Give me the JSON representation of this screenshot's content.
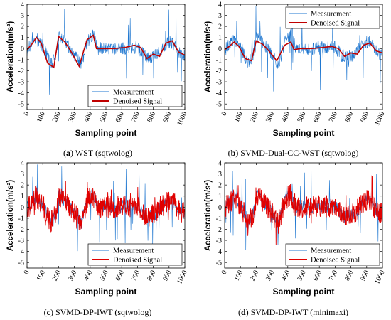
{
  "captions": [
    {
      "letter": "a",
      "text": " WST (sqtwolog)"
    },
    {
      "letter": "b",
      "text": " SVMD-Dual-CC-WST (sqtwolog)"
    },
    {
      "letter": "c",
      "text": " SVMD-DP-IWT (sqtwolog)"
    },
    {
      "letter": "d",
      "text": " SVMD-DP-IWT (minimaxi)"
    }
  ],
  "chart_data": [
    {
      "type": "line",
      "title": "",
      "xlabel": "Sampling point",
      "ylabel": "Acceleration(m/s²)",
      "xlim": [
        0,
        1000
      ],
      "ylim": [
        -5.5,
        4
      ],
      "xticks": [
        "0",
        "100",
        "200",
        "300",
        "400",
        "500",
        "600",
        "700",
        "800",
        "900",
        "1000"
      ],
      "yticks": [
        "4",
        "3",
        "2",
        "1",
        "0",
        "-1",
        "-2",
        "-3",
        "-4",
        "-5"
      ],
      "legend_position": "bottom-right",
      "series": [
        {
          "name": "Measurement",
          "color": "#1f77d0",
          "style": "thin"
        },
        {
          "name": "Denoised Signal",
          "color": "#c00000",
          "style": "smooth",
          "x": [
            0,
            30,
            60,
            90,
            130,
            170,
            200,
            240,
            280,
            330,
            380,
            420,
            440,
            480,
            550,
            620,
            680,
            720,
            760,
            800,
            840,
            880,
            920,
            960,
            1000
          ],
          "y": [
            -0.1,
            0.4,
            1.0,
            0.5,
            -1.3,
            -1.7,
            1.1,
            0.6,
            -0.3,
            -1.6,
            0.8,
            1.2,
            0.0,
            0.0,
            0.0,
            0.1,
            0.3,
            0.1,
            -0.9,
            -0.5,
            -0.7,
            0.5,
            0.7,
            -0.3,
            -0.6
          ]
        }
      ]
    },
    {
      "type": "line",
      "title": "",
      "xlabel": "Sampling point",
      "ylabel": "Acceleration(m/s²)",
      "xlim": [
        0,
        1000
      ],
      "ylim": [
        -5.5,
        4
      ],
      "xticks": [
        "0",
        "100",
        "200",
        "300",
        "400",
        "500",
        "600",
        "700",
        "800",
        "900",
        "1000"
      ],
      "yticks": [
        "4",
        "3",
        "2",
        "1",
        "0",
        "-1",
        "-2",
        "-3",
        "-4",
        "-5"
      ],
      "legend_position": "top-right",
      "series": [
        {
          "name": "Measurement",
          "color": "#1f77d0",
          "style": "thin"
        },
        {
          "name": "Denoised Signal",
          "color": "#c00000",
          "style": "smooth",
          "x": [
            0,
            30,
            60,
            90,
            130,
            170,
            200,
            240,
            280,
            330,
            380,
            420,
            440,
            480,
            550,
            620,
            680,
            720,
            760,
            800,
            840,
            880,
            920,
            960,
            1000
          ],
          "y": [
            -0.1,
            0.2,
            0.6,
            0.2,
            -0.9,
            -1.1,
            0.7,
            0.4,
            -0.2,
            -1.1,
            0.3,
            0.6,
            -0.1,
            0.0,
            0.0,
            0.1,
            0.2,
            0.0,
            -0.7,
            -0.4,
            -0.5,
            0.3,
            0.5,
            -0.2,
            -0.4
          ]
        }
      ]
    },
    {
      "type": "line",
      "title": "",
      "xlabel": "Sampling point",
      "ylabel": "Acceleration(m/s²)",
      "xlim": [
        0,
        1000
      ],
      "ylim": [
        -5.5,
        4
      ],
      "xticks": [
        "0",
        "100",
        "200",
        "300",
        "400",
        "500",
        "600",
        "700",
        "800",
        "900",
        "1000"
      ],
      "yticks": [
        "4",
        "3",
        "2",
        "1",
        "0",
        "-1",
        "-2",
        "-3",
        "-4",
        "-5"
      ],
      "legend_position": "bottom-right",
      "series": [
        {
          "name": "Measurement",
          "color": "#1f77d0",
          "style": "thin"
        },
        {
          "name": "Denoised Signal",
          "color": "#e00000",
          "style": "dense"
        }
      ]
    },
    {
      "type": "line",
      "title": "",
      "xlabel": "Sampling point",
      "ylabel": "Acceleration(m/s²)",
      "xlim": [
        0,
        1000
      ],
      "ylim": [
        -5.5,
        4
      ],
      "xticks": [
        "0",
        "100",
        "200",
        "300",
        "400",
        "500",
        "600",
        "700",
        "800",
        "900",
        "1000"
      ],
      "yticks": [
        "4",
        "3",
        "2",
        "1",
        "0",
        "-1",
        "-2",
        "-3",
        "-4",
        "-5"
      ],
      "legend_position": "bottom-right",
      "series": [
        {
          "name": "Measurement",
          "color": "#1f77d0",
          "style": "thin"
        },
        {
          "name": "Denoised Signal",
          "color": "#e00000",
          "style": "dense"
        }
      ]
    }
  ]
}
